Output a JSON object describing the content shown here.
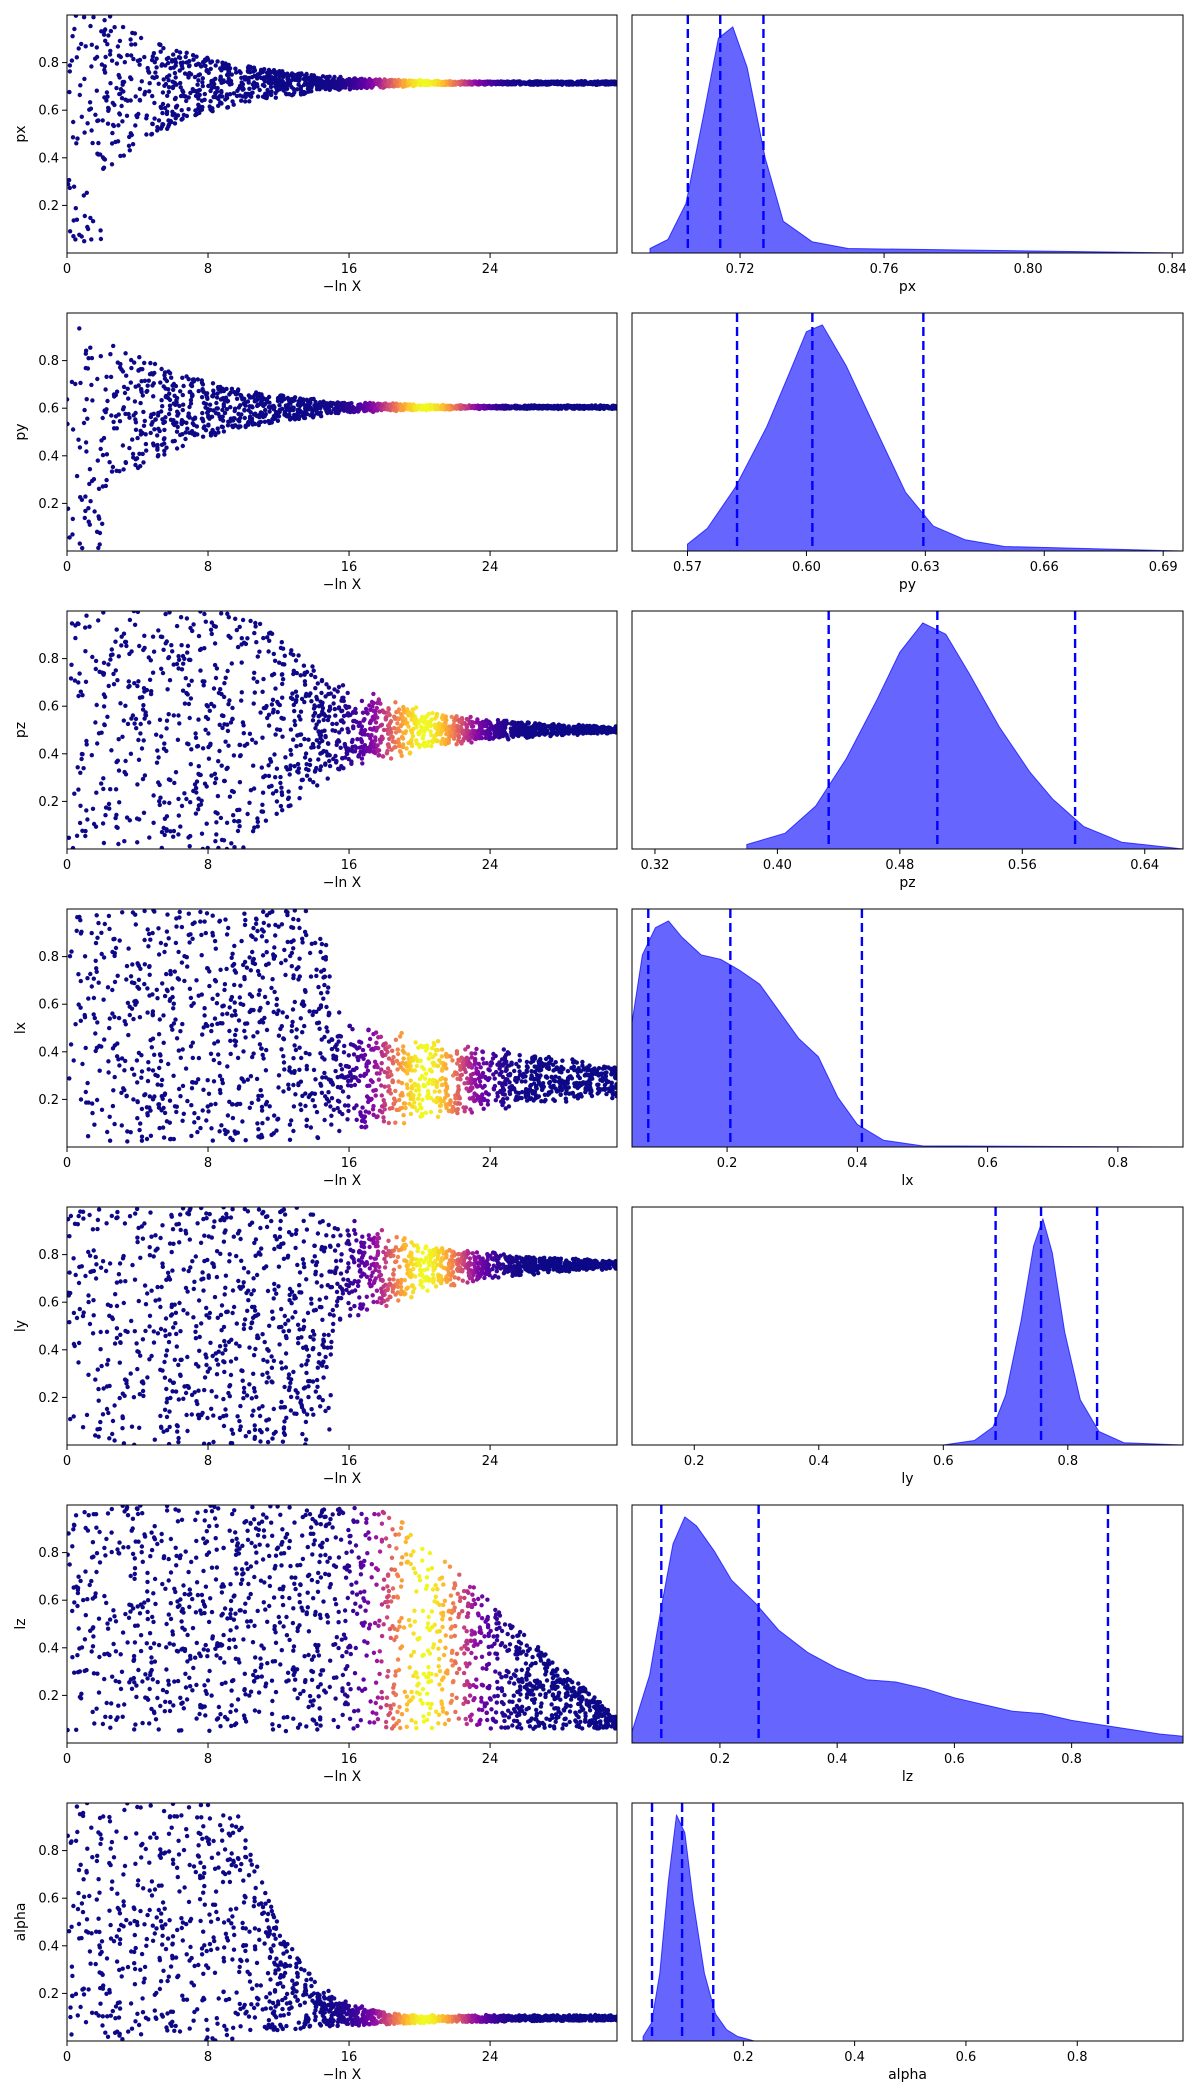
{
  "chart_data": {
    "type": "scatter",
    "rows": [
      {
        "param": "px",
        "trace": {
          "type": "scatter",
          "xlabel": "−ln X",
          "ylabel": "px",
          "xlim": [
            0,
            31.2
          ],
          "ylim": [
            0,
            1
          ],
          "xticks": [
            "0",
            "8",
            "16",
            "24"
          ],
          "yticks": [
            "0.2",
            "0.4",
            "0.6",
            "0.8"
          ],
          "shape": "funnel",
          "converge_y": 0.715,
          "x_end": 31.2
        },
        "marginal": {
          "type": "area",
          "xlabel": "px",
          "xlim": [
            0.69,
            0.843
          ],
          "xticks": [
            "0.72",
            "0.76",
            "0.80",
            "0.84"
          ],
          "x": [
            0.695,
            0.7,
            0.705,
            0.71,
            0.714,
            0.718,
            0.722,
            0.727,
            0.732,
            0.74,
            0.75,
            0.843
          ],
          "y": [
            0.02,
            0.06,
            0.22,
            0.62,
            0.95,
            1.0,
            0.82,
            0.42,
            0.14,
            0.05,
            0.02,
            0.0
          ],
          "quantiles": [
            0.7055,
            0.7145,
            0.7265
          ]
        }
      },
      {
        "param": "py",
        "trace": {
          "type": "scatter",
          "xlabel": "−ln X",
          "ylabel": "py",
          "xlim": [
            0,
            31.2
          ],
          "ylim": [
            0,
            1
          ],
          "xticks": [
            "0",
            "8",
            "16",
            "24"
          ],
          "yticks": [
            "0.2",
            "0.4",
            "0.6",
            "0.8"
          ],
          "shape": "funnel",
          "converge_y": 0.605,
          "x_end": 31.2
        },
        "marginal": {
          "type": "area",
          "xlabel": "py",
          "xlim": [
            0.556,
            0.695
          ],
          "xticks": [
            "0.57",
            "0.60",
            "0.63",
            "0.66",
            "0.69"
          ],
          "x": [
            0.57,
            0.575,
            0.582,
            0.59,
            0.596,
            0.6,
            0.604,
            0.61,
            0.618,
            0.625,
            0.632,
            0.64,
            0.65,
            0.695
          ],
          "y": [
            0.03,
            0.1,
            0.28,
            0.55,
            0.8,
            0.97,
            1.0,
            0.82,
            0.52,
            0.26,
            0.11,
            0.05,
            0.02,
            0.0
          ],
          "quantiles": [
            0.5825,
            0.6015,
            0.6295
          ]
        }
      },
      {
        "param": "pz",
        "trace": {
          "type": "scatter",
          "xlabel": "−ln X",
          "ylabel": "pz",
          "xlim": [
            0,
            31.2
          ],
          "ylim": [
            0,
            1
          ],
          "xticks": [
            "0",
            "8",
            "16",
            "24"
          ],
          "yticks": [
            "0.2",
            "0.4",
            "0.6",
            "0.8"
          ],
          "shape": "rising-cone",
          "converge_y": 0.5,
          "x_end": 31.2
        },
        "marginal": {
          "type": "area",
          "xlabel": "pz",
          "xlim": [
            0.305,
            0.665
          ],
          "xticks": [
            "0.32",
            "0.40",
            "0.48",
            "0.56",
            "0.64"
          ],
          "x": [
            0.38,
            0.405,
            0.425,
            0.445,
            0.465,
            0.48,
            0.495,
            0.51,
            0.525,
            0.545,
            0.565,
            0.58,
            0.6,
            0.625,
            0.665
          ],
          "y": [
            0.02,
            0.07,
            0.19,
            0.4,
            0.66,
            0.87,
            1.0,
            0.95,
            0.78,
            0.54,
            0.34,
            0.22,
            0.1,
            0.03,
            0.0
          ],
          "quantiles": [
            0.4335,
            0.5045,
            0.5945
          ]
        }
      },
      {
        "param": "lx",
        "trace": {
          "type": "scatter",
          "xlabel": "−ln X",
          "ylabel": "lx",
          "xlim": [
            0,
            31.2
          ],
          "ylim": [
            0,
            1
          ],
          "xticks": [
            "0",
            "8",
            "16",
            "24"
          ],
          "yticks": [
            "0.2",
            "0.4",
            "0.6",
            "0.8"
          ],
          "shape": "block-then-band",
          "converge_y": 0.27,
          "x_end": 31.2
        },
        "marginal": {
          "type": "area",
          "xlabel": "lx",
          "xlim": [
            0.054,
            0.9
          ],
          "xticks": [
            "0.2",
            "0.4",
            "0.6",
            "0.8"
          ],
          "x": [
            0.054,
            0.07,
            0.09,
            0.11,
            0.13,
            0.16,
            0.19,
            0.22,
            0.25,
            0.28,
            0.31,
            0.34,
            0.37,
            0.4,
            0.44,
            0.5,
            0.9
          ],
          "y": [
            0.55,
            0.85,
            0.97,
            1.0,
            0.93,
            0.85,
            0.83,
            0.78,
            0.72,
            0.6,
            0.48,
            0.4,
            0.22,
            0.1,
            0.03,
            0.005,
            0.0
          ],
          "quantiles": [
            0.079,
            0.205,
            0.407
          ]
        }
      },
      {
        "param": "ly",
        "trace": {
          "type": "scatter",
          "xlabel": "−ln X",
          "ylabel": "ly",
          "xlim": [
            0,
            31.2
          ],
          "ylim": [
            0,
            1
          ],
          "xticks": [
            "0",
            "8",
            "16",
            "24"
          ],
          "yticks": [
            "0.2",
            "0.4",
            "0.6",
            "0.8"
          ],
          "shape": "funnel-top",
          "converge_y": 0.76,
          "x_end": 31.2
        },
        "marginal": {
          "type": "area",
          "xlabel": "ly",
          "xlim": [
            0.1,
            0.985
          ],
          "xticks": [
            "0.2",
            "0.4",
            "0.6",
            "0.8"
          ],
          "x": [
            0.6,
            0.65,
            0.68,
            0.7,
            0.725,
            0.745,
            0.76,
            0.775,
            0.795,
            0.82,
            0.85,
            0.89,
            0.985
          ],
          "y": [
            0.0,
            0.02,
            0.08,
            0.22,
            0.55,
            0.88,
            1.0,
            0.85,
            0.5,
            0.2,
            0.06,
            0.01,
            0.0
          ],
          "quantiles": [
            0.684,
            0.757,
            0.847
          ]
        }
      },
      {
        "param": "lz",
        "trace": {
          "type": "scatter",
          "xlabel": "−ln X",
          "ylabel": "lz",
          "xlim": [
            0,
            31.2
          ],
          "ylim": [
            0,
            1
          ],
          "xticks": [
            "0",
            "8",
            "16",
            "24"
          ],
          "yticks": [
            "0.2",
            "0.4",
            "0.6",
            "0.8"
          ],
          "shape": "wedge",
          "converge_y": 0.15,
          "x_end": 31.2
        },
        "marginal": {
          "type": "area",
          "xlabel": "lz",
          "xlim": [
            0.05,
            0.99
          ],
          "xticks": [
            "0.2",
            "0.4",
            "0.6",
            "0.8"
          ],
          "x": [
            0.05,
            0.08,
            0.1,
            0.12,
            0.14,
            0.16,
            0.19,
            0.22,
            0.26,
            0.3,
            0.35,
            0.4,
            0.45,
            0.5,
            0.55,
            0.6,
            0.65,
            0.7,
            0.75,
            0.8,
            0.85,
            0.9,
            0.95,
            0.99
          ],
          "y": [
            0.05,
            0.3,
            0.6,
            0.88,
            1.0,
            0.96,
            0.85,
            0.72,
            0.62,
            0.5,
            0.4,
            0.33,
            0.28,
            0.27,
            0.24,
            0.2,
            0.17,
            0.14,
            0.13,
            0.1,
            0.08,
            0.06,
            0.04,
            0.03
          ],
          "quantiles": [
            0.1,
            0.266,
            0.862
          ]
        }
      },
      {
        "param": "alpha",
        "trace": {
          "type": "scatter",
          "xlabel": "−ln X",
          "ylabel": "alpha",
          "xlim": [
            0,
            31.2
          ],
          "ylim": [
            0,
            1
          ],
          "xticks": [
            "0",
            "8",
            "16",
            "24"
          ],
          "yticks": [
            "0.2",
            "0.4",
            "0.6",
            "0.8"
          ],
          "shape": "funnel-bottom",
          "converge_y": 0.09,
          "x_end": 31.2
        },
        "marginal": {
          "type": "area",
          "xlabel": "alpha",
          "xlim": [
            0.0,
            0.99
          ],
          "xticks": [
            "0.2",
            "0.4",
            "0.6",
            "0.8"
          ],
          "x": [
            0.02,
            0.035,
            0.05,
            0.065,
            0.08,
            0.095,
            0.11,
            0.13,
            0.15,
            0.17,
            0.19,
            0.22,
            0.99
          ],
          "y": [
            0.02,
            0.08,
            0.3,
            0.7,
            1.0,
            0.92,
            0.62,
            0.3,
            0.12,
            0.05,
            0.02,
            0.0,
            0.0
          ],
          "quantiles": [
            0.036,
            0.09,
            0.146
          ]
        }
      }
    ]
  }
}
